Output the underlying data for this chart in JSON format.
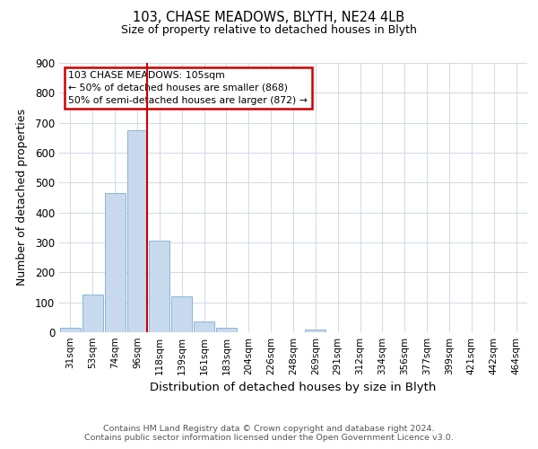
{
  "title1": "103, CHASE MEADOWS, BLYTH, NE24 4LB",
  "title2": "Size of property relative to detached houses in Blyth",
  "xlabel": "Distribution of detached houses by size in Blyth",
  "ylabel": "Number of detached properties",
  "bar_labels": [
    "31sqm",
    "53sqm",
    "74sqm",
    "96sqm",
    "118sqm",
    "139sqm",
    "161sqm",
    "183sqm",
    "204sqm",
    "226sqm",
    "248sqm",
    "269sqm",
    "291sqm",
    "312sqm",
    "334sqm",
    "356sqm",
    "377sqm",
    "399sqm",
    "421sqm",
    "442sqm",
    "464sqm"
  ],
  "bar_values": [
    15,
    125,
    465,
    675,
    305,
    120,
    37,
    14,
    0,
    0,
    0,
    8,
    0,
    0,
    0,
    0,
    0,
    0,
    0,
    0,
    0
  ],
  "bar_color": "#c8d9ed",
  "bar_edge_color": "#7aadcf",
  "vline_color": "#cc0000",
  "annotation_title": "103 CHASE MEADOWS: 105sqm",
  "annotation_line1": "← 50% of detached houses are smaller (868)",
  "annotation_line2": "50% of semi-detached houses are larger (872) →",
  "annotation_box_color": "#ffffff",
  "annotation_box_edge": "#cc0000",
  "ylim": [
    0,
    900
  ],
  "yticks": [
    0,
    100,
    200,
    300,
    400,
    500,
    600,
    700,
    800,
    900
  ],
  "footer1": "Contains HM Land Registry data © Crown copyright and database right 2024.",
  "footer2": "Contains public sector information licensed under the Open Government Licence v3.0.",
  "bg_color": "#ffffff",
  "grid_color": "#d0dae6"
}
